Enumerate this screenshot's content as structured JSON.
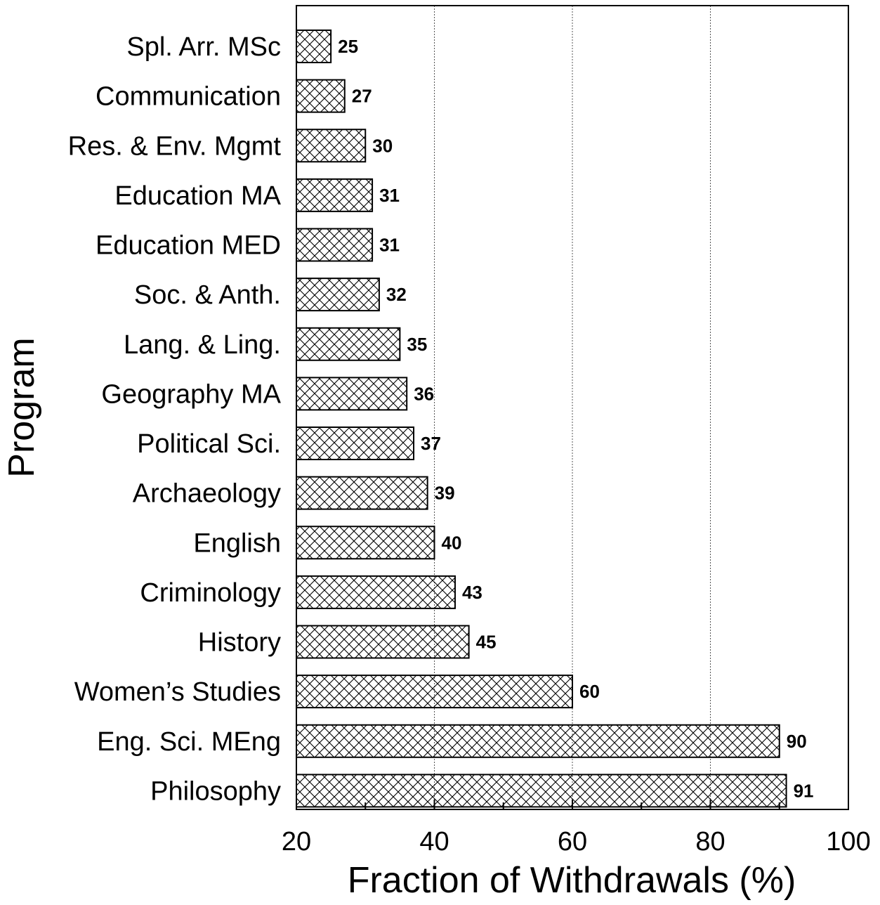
{
  "chart_data": {
    "type": "bar",
    "orientation": "horizontal",
    "categories": [
      "Spl. Arr. MSc",
      "Communication",
      "Res. & Env. Mgmt",
      "Education MA",
      "Education MED",
      "Soc. & Anth.",
      "Lang. & Ling.",
      "Geography MA",
      "Political Sci.",
      "Archaeology",
      "English",
      "Criminology",
      "History",
      "Women’s Studies",
      "Eng. Sci. MEng",
      "Philosophy"
    ],
    "values": [
      25,
      27,
      30,
      31,
      31,
      32,
      35,
      36,
      37,
      39,
      40,
      43,
      45,
      60,
      90,
      91
    ],
    "value_labels": [
      "25",
      "27",
      "30",
      "31",
      "31",
      "32",
      "35",
      "36",
      "37",
      "39",
      "40",
      "43",
      "45",
      "60",
      "90",
      "91"
    ],
    "xlabel": "Fraction of Withdrawals (%)",
    "ylabel": "Program",
    "xlim": [
      20,
      100
    ],
    "xticks": [
      20,
      40,
      60,
      80,
      100
    ],
    "xtick_labels": [
      "20",
      "40",
      "60",
      "80",
      "100"
    ],
    "minor_xticks": [
      30,
      50,
      70,
      90
    ],
    "grid": "vertical dotted lines at major ticks",
    "bar_fill": "crosshatch",
    "colors": {
      "bar_edge": "#000000",
      "hatch": "#000000",
      "background": "#ffffff"
    }
  }
}
